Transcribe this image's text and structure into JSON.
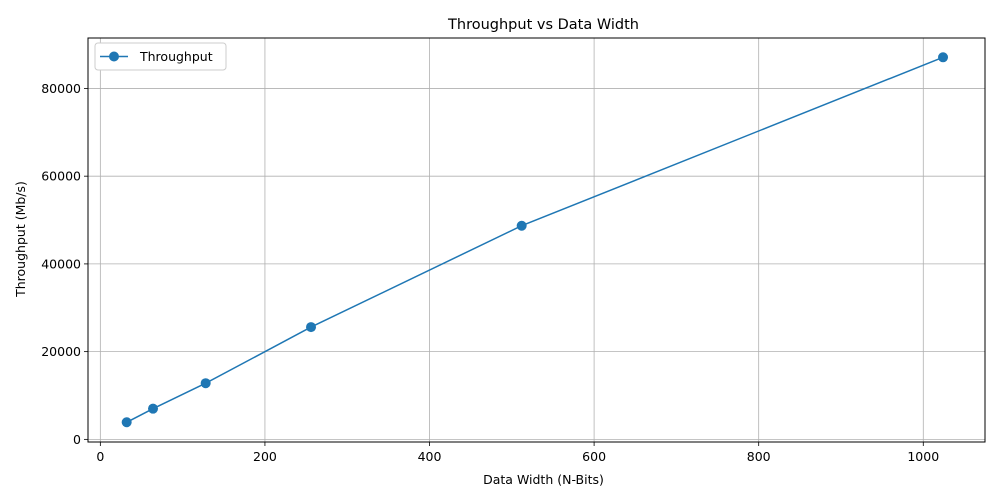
{
  "chart_data": {
    "type": "line",
    "title": "Throughput vs Data Width",
    "xlabel": "Data Width (N-Bits)",
    "ylabel": "Throughput (Mb/s)",
    "xlim": [
      -15,
      1075
    ],
    "ylim": [
      -600,
      91500
    ],
    "x_ticks": [
      0,
      200,
      400,
      600,
      800,
      1000
    ],
    "y_ticks": [
      0,
      20000,
      40000,
      60000,
      80000
    ],
    "grid": true,
    "legend_position": "upper-left",
    "series": [
      {
        "name": "Throughput",
        "color": "#1f77b4",
        "marker": "circle",
        "x": [
          32,
          64,
          128,
          256,
          512,
          1024
        ],
        "y": [
          3900,
          7000,
          12800,
          25600,
          48700,
          87100
        ]
      }
    ]
  }
}
